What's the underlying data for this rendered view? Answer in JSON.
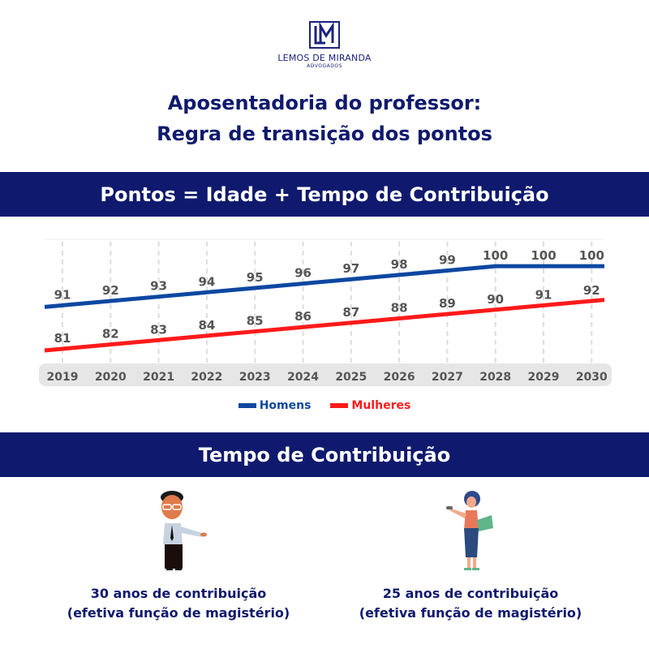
{
  "logo": {
    "monogram": "LM",
    "firm": "LEMOS DE MIRANDA",
    "sub": "ADVOGADOS"
  },
  "title": {
    "line1": "Aposentadoria do professor:",
    "line2": "Regra de transição dos pontos"
  },
  "banner1": "Pontos = Idade + Tempo de Contribuição",
  "banner2": "Tempo de Contribuição",
  "colors": {
    "navy": "#0f1a6e",
    "homens": "#0d47a1",
    "mulheres": "#ff1a1a",
    "label": "#555555"
  },
  "chart_data": {
    "type": "line",
    "categories": [
      "2019",
      "2020",
      "2021",
      "2022",
      "2023",
      "2024",
      "2025",
      "2026",
      "2027",
      "2028",
      "2029",
      "2030"
    ],
    "series": [
      {
        "name": "Homens",
        "values": [
          91,
          92,
          93,
          94,
          95,
          96,
          97,
          98,
          99,
          100,
          100,
          100
        ]
      },
      {
        "name": "Mulheres",
        "values": [
          81,
          82,
          83,
          84,
          85,
          86,
          87,
          88,
          89,
          90,
          91,
          92
        ]
      }
    ],
    "grid": "vertical dashed",
    "legend": "bottom-center",
    "data_labels": true
  },
  "captions": {
    "men": {
      "line1": "30 anos de contribuição",
      "line2": "(efetiva função de magistério)"
    },
    "women": {
      "line1": "25 anos de contribuição",
      "line2": "(efetiva função de magistério)"
    }
  }
}
